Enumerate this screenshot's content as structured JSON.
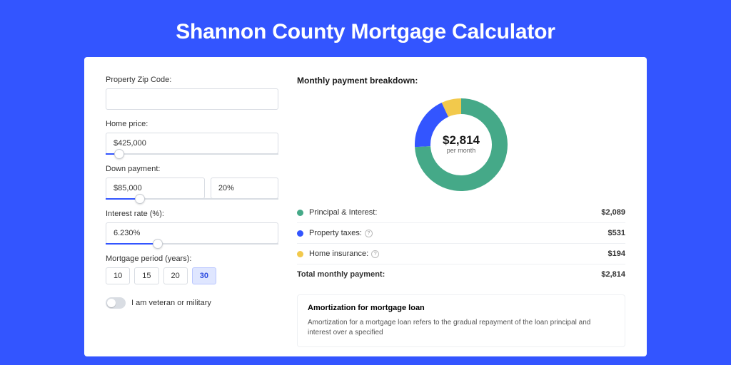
{
  "title": "Shannon County Mortgage Calculator",
  "colors": {
    "page_bg": "#3355ff",
    "card_bg": "#ffffff",
    "border": "#d9dde3",
    "slider_fill": "#3355ff",
    "text": "#333333"
  },
  "form": {
    "zip": {
      "label": "Property Zip Code:",
      "value": ""
    },
    "home_price": {
      "label": "Home price:",
      "value": "$425,000",
      "slider_pct": 8
    },
    "down_payment": {
      "label": "Down payment:",
      "amount": "$85,000",
      "percent": "20%",
      "slider_pct": 20
    },
    "interest_rate": {
      "label": "Interest rate (%):",
      "value": "6.230%",
      "slider_pct": 30
    },
    "mortgage_period": {
      "label": "Mortgage period (years):",
      "options": [
        "10",
        "15",
        "20",
        "30"
      ],
      "selected": "30"
    },
    "veteran": {
      "label": "I am veteran or military",
      "checked": false
    }
  },
  "breakdown": {
    "title": "Monthly payment breakdown:",
    "center_value": "$2,814",
    "center_sub": "per month",
    "donut": {
      "size": 130,
      "stroke_width": 22,
      "slices": [
        {
          "key": "principal_interest",
          "color": "#45a988",
          "pct": 74.2
        },
        {
          "key": "property_taxes",
          "color": "#3355ff",
          "pct": 18.9
        },
        {
          "key": "home_insurance",
          "color": "#f2c94c",
          "pct": 6.9
        }
      ]
    },
    "items": [
      {
        "label": "Principal & Interest:",
        "value": "$2,089",
        "color": "#45a988",
        "info": false
      },
      {
        "label": "Property taxes:",
        "value": "$531",
        "color": "#3355ff",
        "info": true
      },
      {
        "label": "Home insurance:",
        "value": "$194",
        "color": "#f2c94c",
        "info": true
      }
    ],
    "total": {
      "label": "Total monthly payment:",
      "value": "$2,814"
    }
  },
  "amortization": {
    "title": "Amortization for mortgage loan",
    "body": "Amortization for a mortgage loan refers to the gradual repayment of the loan principal and interest over a specified"
  }
}
